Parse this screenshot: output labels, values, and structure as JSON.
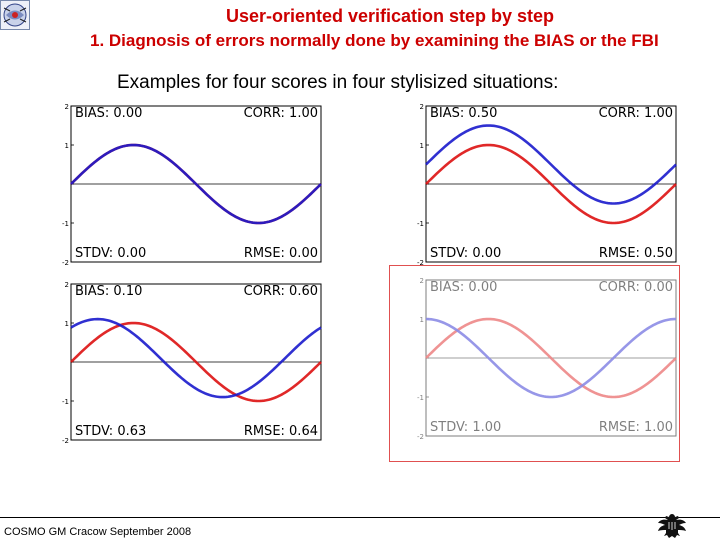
{
  "header": {
    "title": "User-oriented verification step by step",
    "subtitle": "1. Diagnosis of errors normally done by examining the BIAS or the FBI",
    "intro": "Examples for four scores in four stylisized situations:"
  },
  "footer": {
    "text": "COSMO GM Cracow September 2008"
  },
  "icons": {
    "left_logo": "dwd-logo-icon",
    "eagle": "federal-eagle-icon"
  },
  "colors": {
    "forecast": "#1a1acc",
    "observation": "#dd1111",
    "title": "#cc0000",
    "highlight_border": "#e05050"
  },
  "chart_data": [
    {
      "type": "line",
      "x": [
        0,
        6.2832
      ],
      "xlim": [
        0,
        6.2832
      ],
      "ylim": [
        -2,
        2
      ],
      "yticks": [
        "2",
        "1",
        "",
        "-1",
        "-2"
      ],
      "series": [
        {
          "color": "#dd1111",
          "function": "sin(x)",
          "offset": 0.0,
          "phase": 0.0
        },
        {
          "color": "#1a1acc",
          "function": "sin(x)",
          "offset": 0.0,
          "phase": 0.0
        }
      ],
      "stats": {
        "bias_label": "BIAS:",
        "bias": "0.00",
        "corr_label": "CORR:",
        "corr": "1.00",
        "stdv_label": "STDV:",
        "stdv": "0.00",
        "rmse_label": "RMSE:",
        "rmse": "0.00"
      }
    },
    {
      "type": "line",
      "x": [
        0,
        6.2832
      ],
      "xlim": [
        0,
        6.2832
      ],
      "ylim": [
        -2,
        2
      ],
      "yticks": [
        "2",
        "1",
        "",
        "-1",
        "-2"
      ],
      "series": [
        {
          "color": "#dd1111",
          "function": "sin(x)",
          "offset": 0.0,
          "phase": 0.0
        },
        {
          "color": "#1a1acc",
          "function": "sin(x)",
          "offset": 0.5,
          "phase": 0.0
        }
      ],
      "stats": {
        "bias_label": "BIAS:",
        "bias": "0.50",
        "corr_label": "CORR:",
        "corr": "1.00",
        "stdv_label": "STDV:",
        "stdv": "0.00",
        "rmse_label": "RMSE:",
        "rmse": "0.50"
      }
    },
    {
      "type": "line",
      "x": [
        0,
        6.2832
      ],
      "xlim": [
        0,
        6.2832
      ],
      "ylim": [
        -2,
        2
      ],
      "yticks": [
        "2",
        "1",
        "",
        "-1",
        "-2"
      ],
      "series": [
        {
          "color": "#dd1111",
          "function": "sin(x)",
          "offset": 0.0,
          "phase": 0.0
        },
        {
          "color": "#1a1acc",
          "function": "sin(x)",
          "offset": 0.1,
          "phase": 0.9
        }
      ],
      "stats": {
        "bias_label": "BIAS:",
        "bias": "0.10",
        "corr_label": "CORR:",
        "corr": "0.60",
        "stdv_label": "STDV:",
        "stdv": "0.63",
        "rmse_label": "RMSE:",
        "rmse": "0.64"
      }
    },
    {
      "type": "line",
      "x": [
        0,
        6.2832
      ],
      "xlim": [
        0,
        6.2832
      ],
      "ylim": [
        -2,
        2
      ],
      "yticks": [
        "2",
        "1",
        "",
        "-1",
        "-2"
      ],
      "faded": true,
      "series": [
        {
          "color": "#dd1111",
          "function": "sin(x)",
          "offset": 0.0,
          "phase": 0.0
        },
        {
          "color": "#1a1acc",
          "function": "cos(x)",
          "offset": 0.0,
          "phase": 1.5708
        }
      ],
      "stats": {
        "bias_label": "BIAS:",
        "bias": "0.00",
        "corr_label": "CORR:",
        "corr": "0.00",
        "stdv_label": "STDV:",
        "stdv": "1.00",
        "rmse_label": "RMSE:",
        "rmse": "1.00"
      }
    }
  ]
}
